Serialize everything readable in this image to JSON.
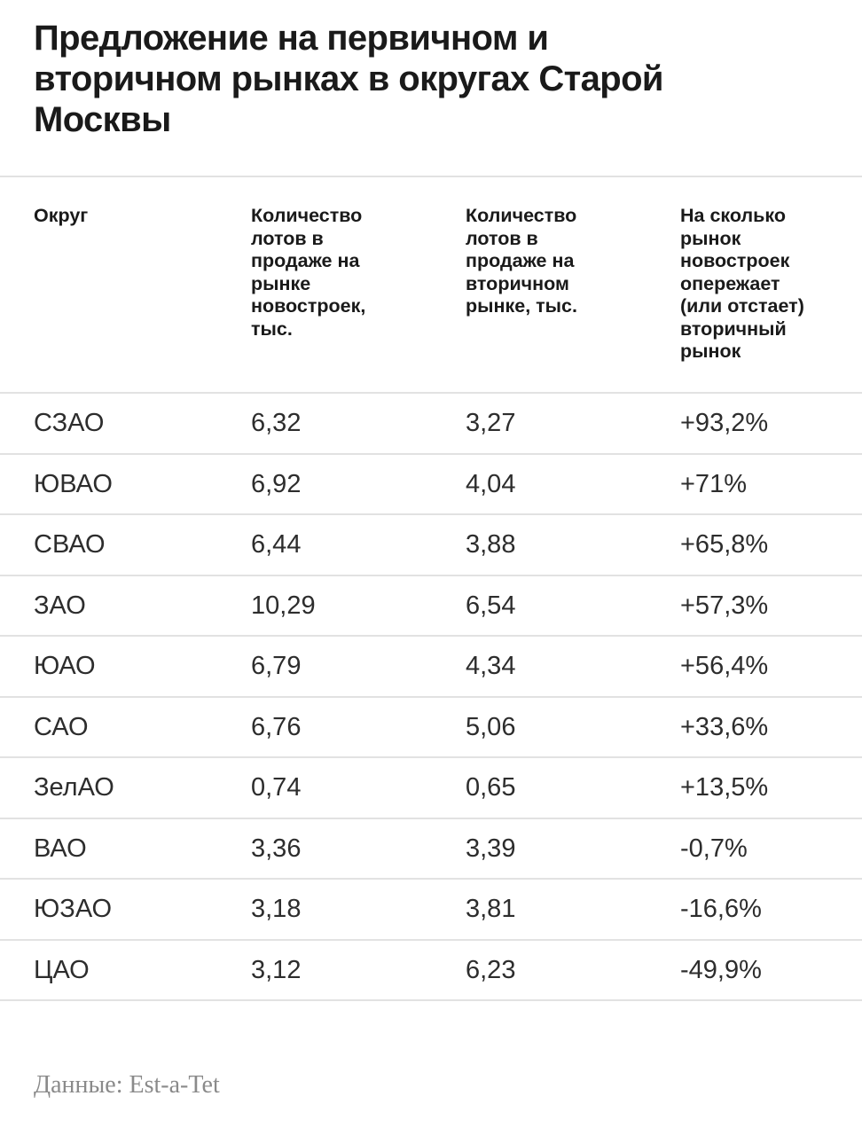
{
  "page": {
    "background_color": "#ffffff",
    "text_color": "#1a1a1a",
    "divider_color": "#e2e2e2",
    "footer_text_color": "#8a8a8a"
  },
  "title": "Предложение на первичном и\nвторичном рынках в округах Старой\nМосквы",
  "table": {
    "columns": [
      {
        "label": "Округ"
      },
      {
        "label": "Количество\nлотов в\nпродаже на\nрынке\nновостроек,\nтыс."
      },
      {
        "label": "Количество\nлотов в\nпродаже на\nвторичном\nрынке, тыс."
      },
      {
        "label": "На сколько\nрынок\nновостроек\nопережает\n(или отстает)\nвторичный\nрынок"
      }
    ],
    "rows": [
      {
        "district": "СЗАО",
        "primary": "6,32",
        "secondary": "3,27",
        "diff": "+93,2%"
      },
      {
        "district": "ЮВАО",
        "primary": "6,92",
        "secondary": "4,04",
        "diff": "+71%"
      },
      {
        "district": "СВАО",
        "primary": "6,44",
        "secondary": "3,88",
        "diff": "+65,8%"
      },
      {
        "district": "ЗАО",
        "primary": "10,29",
        "secondary": "6,54",
        "diff": "+57,3%"
      },
      {
        "district": "ЮАО",
        "primary": "6,79",
        "secondary": "4,34",
        "diff": "+56,4%"
      },
      {
        "district": "САО",
        "primary": "6,76",
        "secondary": "5,06",
        "diff": "+33,6%"
      },
      {
        "district": "ЗелАО",
        "primary": "0,74",
        "secondary": "0,65",
        "diff": "+13,5%"
      },
      {
        "district": "ВАО",
        "primary": "3,36",
        "secondary": "3,39",
        "diff": "-0,7%"
      },
      {
        "district": "ЮЗАО",
        "primary": "3,18",
        "secondary": "3,81",
        "diff": "-16,6%"
      },
      {
        "district": "ЦАО",
        "primary": "3,12",
        "secondary": "6,23",
        "diff": "-49,9%"
      }
    ]
  },
  "footer": {
    "source_label": "Данные: Est-a-Tet"
  },
  "chart_data": {
    "type": "table",
    "title": "Предложение на первичном и вторичном рынках в округах Старой Москвы",
    "columns": [
      "Округ",
      "Количество лотов в продаже на рынке новостроек, тыс.",
      "Количество лотов в продаже на вторичном рынке, тыс.",
      "На сколько рынок новостроек опережает (или отстает) вторичный рынок"
    ],
    "categories": [
      "СЗАО",
      "ЮВАО",
      "СВАО",
      "ЗАО",
      "ЮАО",
      "САО",
      "ЗелАО",
      "ВАО",
      "ЮЗАО",
      "ЦАО"
    ],
    "series": [
      {
        "name": "Количество лотов в продаже на рынке новостроек, тыс.",
        "values": [
          6.32,
          6.92,
          6.44,
          10.29,
          6.79,
          6.76,
          0.74,
          3.36,
          3.18,
          3.12
        ]
      },
      {
        "name": "Количество лотов в продаже на вторичном рынке, тыс.",
        "values": [
          3.27,
          4.04,
          3.88,
          6.54,
          4.34,
          5.06,
          0.65,
          3.39,
          3.81,
          6.23
        ]
      },
      {
        "name": "На сколько рынок новостроек опережает (или отстает) вторичный рынок, %",
        "values": [
          93.2,
          71,
          65.8,
          57.3,
          56.4,
          33.6,
          13.5,
          -0.7,
          -16.6,
          -49.9
        ]
      }
    ],
    "source": "Данные: Est-a-Tet"
  }
}
